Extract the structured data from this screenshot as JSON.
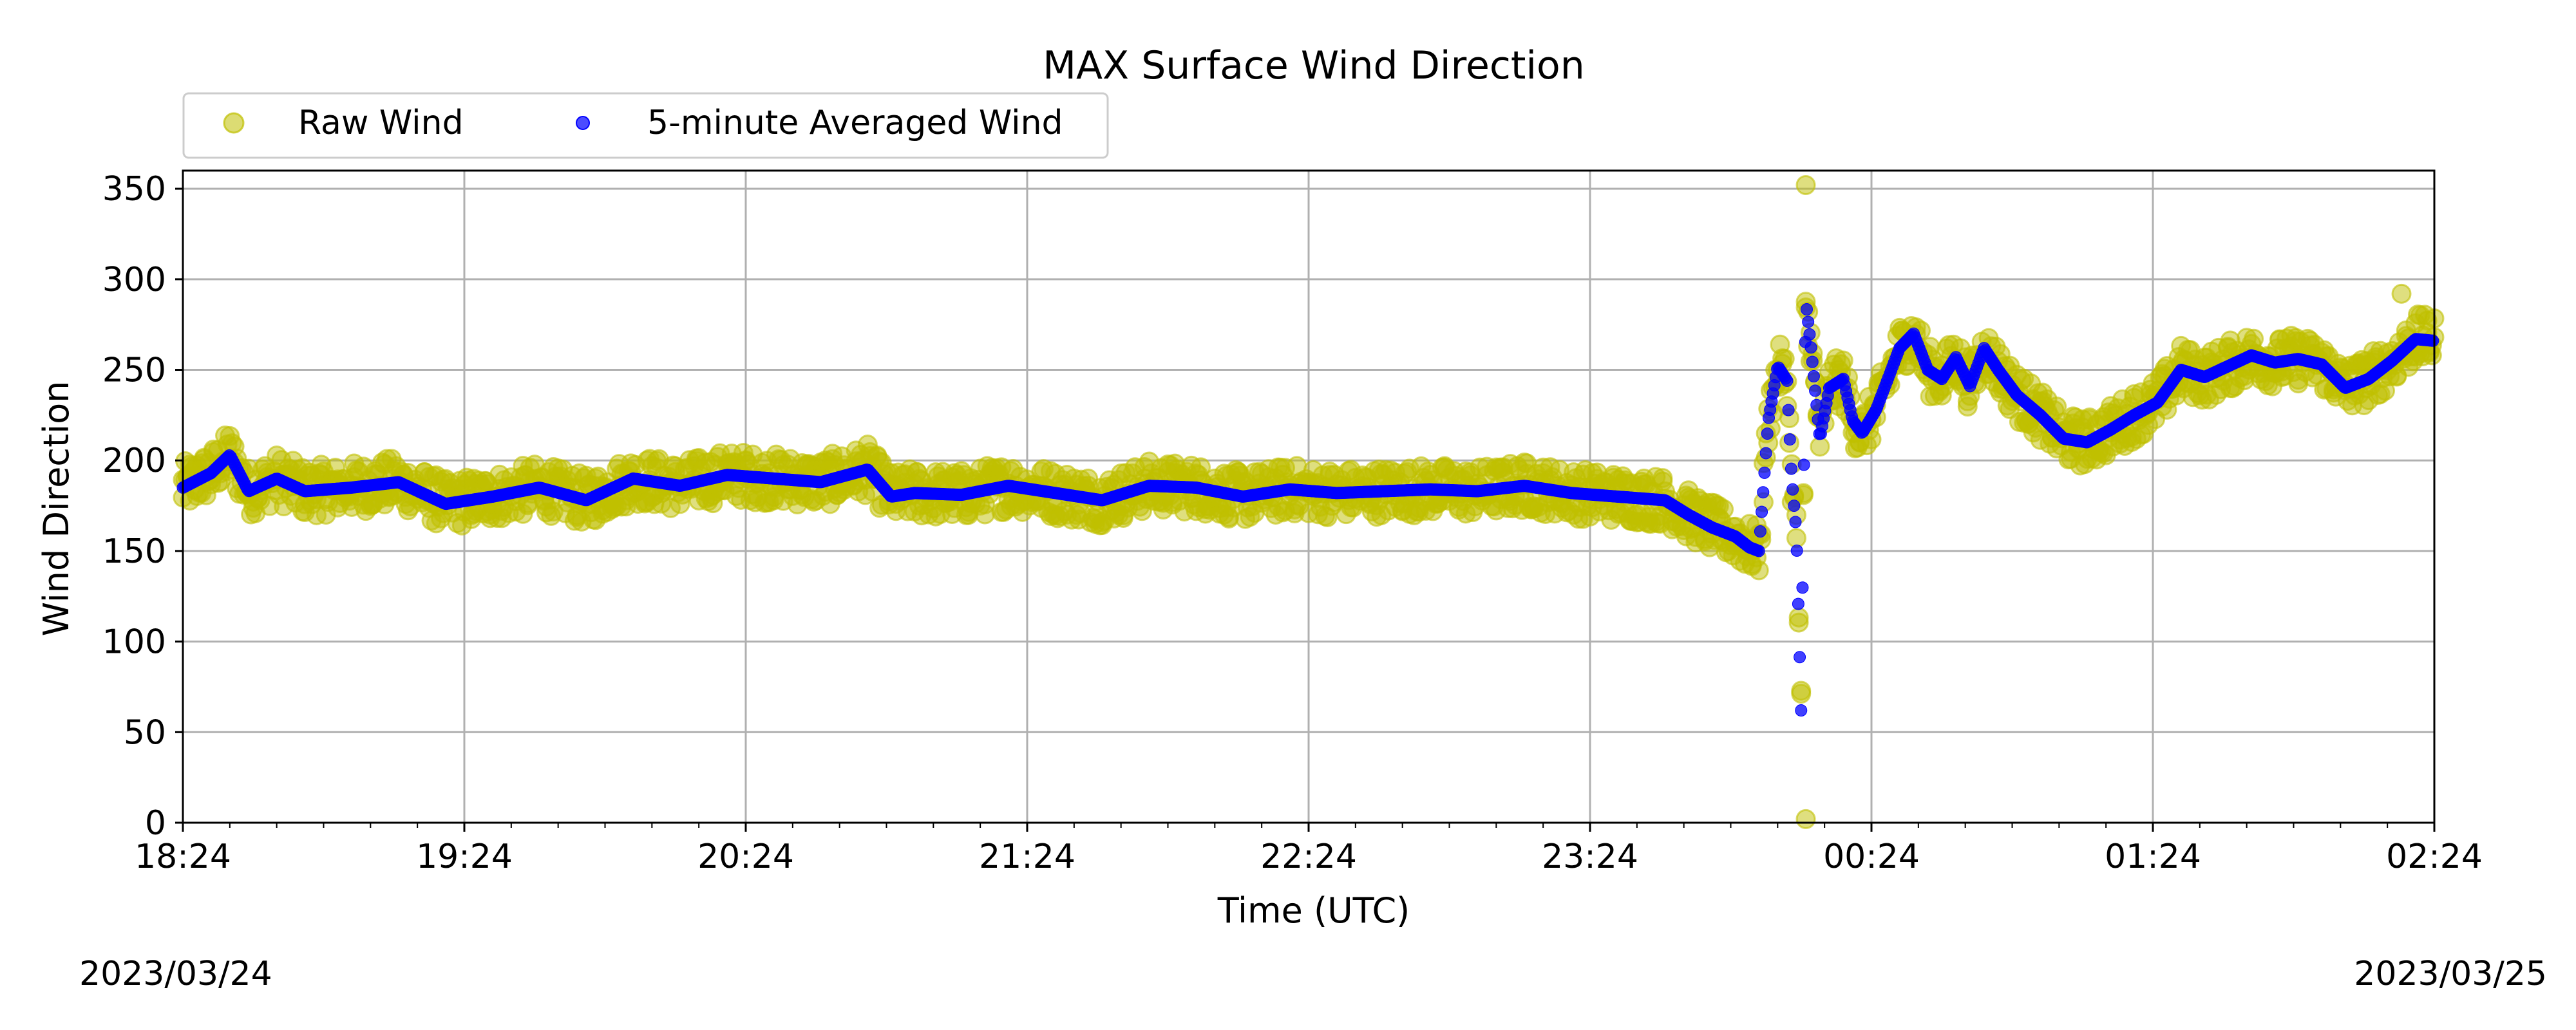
{
  "chart_data": {
    "type": "scatter",
    "title": "MAX Surface Wind Direction",
    "xlabel": "Time (UTC)",
    "ylabel": "Wind Direction",
    "ylim": [
      0,
      360
    ],
    "xlim": [
      "2023-03-24 18:24",
      "2023-03-25 02:24"
    ],
    "x_tick_labels": [
      "18:24",
      "19:24",
      "20:24",
      "21:24",
      "22:24",
      "23:24",
      "00:24",
      "01:24",
      "02:24"
    ],
    "y_tick_labels": [
      "0",
      "50",
      "100",
      "150",
      "200",
      "250",
      "300",
      "350"
    ],
    "start_date": "2023/03/24",
    "end_date": "2023/03/25",
    "grid": true,
    "legend": {
      "placement": "top-left, above plot",
      "entries": [
        {
          "label": "Raw Wind",
          "color": "#bfbf00"
        },
        {
          "label": "5-minute Averaged Wind",
          "color": "#0000ff"
        }
      ]
    },
    "series": [
      {
        "name": "Raw Wind",
        "color": "#bfbf00",
        "spread": 14,
        "note_points": "scatter cloud around the averaged trace",
        "extremes": [
          {
            "time": "00:10",
            "value": 352
          },
          {
            "time": "00:10",
            "value": 2
          },
          {
            "time": "02:17",
            "value": 292
          }
        ]
      },
      {
        "name": "5-minute Averaged Wind",
        "color": "#0000ff",
        "points": [
          [
            "18:24",
            185
          ],
          [
            "18:30",
            193
          ],
          [
            "18:34",
            203
          ],
          [
            "18:38",
            183
          ],
          [
            "18:44",
            190
          ],
          [
            "18:50",
            183
          ],
          [
            "19:00",
            185
          ],
          [
            "19:10",
            188
          ],
          [
            "19:20",
            176
          ],
          [
            "19:30",
            180
          ],
          [
            "19:40",
            185
          ],
          [
            "19:50",
            178
          ],
          [
            "20:00",
            190
          ],
          [
            "20:10",
            186
          ],
          [
            "20:20",
            192
          ],
          [
            "20:30",
            190
          ],
          [
            "20:40",
            188
          ],
          [
            "20:50",
            195
          ],
          [
            "20:55",
            180
          ],
          [
            "21:00",
            182
          ],
          [
            "21:10",
            181
          ],
          [
            "21:20",
            186
          ],
          [
            "21:30",
            182
          ],
          [
            "21:40",
            178
          ],
          [
            "21:50",
            186
          ],
          [
            "22:00",
            185
          ],
          [
            "22:10",
            180
          ],
          [
            "22:20",
            184
          ],
          [
            "22:30",
            182
          ],
          [
            "22:40",
            183
          ],
          [
            "22:50",
            184
          ],
          [
            "23:00",
            183
          ],
          [
            "23:10",
            186
          ],
          [
            "23:20",
            182
          ],
          [
            "23:30",
            180
          ],
          [
            "23:40",
            178
          ],
          [
            "23:45",
            170
          ],
          [
            "23:50",
            163
          ],
          [
            "23:55",
            158
          ],
          [
            "23:58",
            152
          ],
          [
            "00:00",
            150
          ],
          [
            "00:02",
            222
          ],
          [
            "00:04",
            252
          ],
          [
            "00:06",
            244
          ],
          [
            "00:07",
            190
          ],
          [
            "00:08",
            160
          ],
          [
            "00:09",
            62
          ],
          [
            "00:10",
            288
          ],
          [
            "00:11",
            265
          ],
          [
            "00:13",
            212
          ],
          [
            "00:15",
            240
          ],
          [
            "00:18",
            245
          ],
          [
            "00:20",
            222
          ],
          [
            "00:22",
            215
          ],
          [
            "00:25",
            228
          ],
          [
            "00:30",
            262
          ],
          [
            "00:33",
            270
          ],
          [
            "00:36",
            250
          ],
          [
            "00:39",
            245
          ],
          [
            "00:42",
            257
          ],
          [
            "00:45",
            241
          ],
          [
            "00:48",
            262
          ],
          [
            "00:51",
            250
          ],
          [
            "00:55",
            236
          ],
          [
            "01:00",
            225
          ],
          [
            "01:05",
            212
          ],
          [
            "01:10",
            210
          ],
          [
            "01:15",
            217
          ],
          [
            "01:20",
            225
          ],
          [
            "01:25",
            232
          ],
          [
            "01:30",
            250
          ],
          [
            "01:35",
            246
          ],
          [
            "01:40",
            252
          ],
          [
            "01:45",
            258
          ],
          [
            "01:50",
            254
          ],
          [
            "01:55",
            256
          ],
          [
            "02:00",
            253
          ],
          [
            "02:05",
            240
          ],
          [
            "02:10",
            245
          ],
          [
            "02:15",
            255
          ],
          [
            "02:20",
            267
          ],
          [
            "02:24",
            266
          ]
        ]
      }
    ]
  }
}
